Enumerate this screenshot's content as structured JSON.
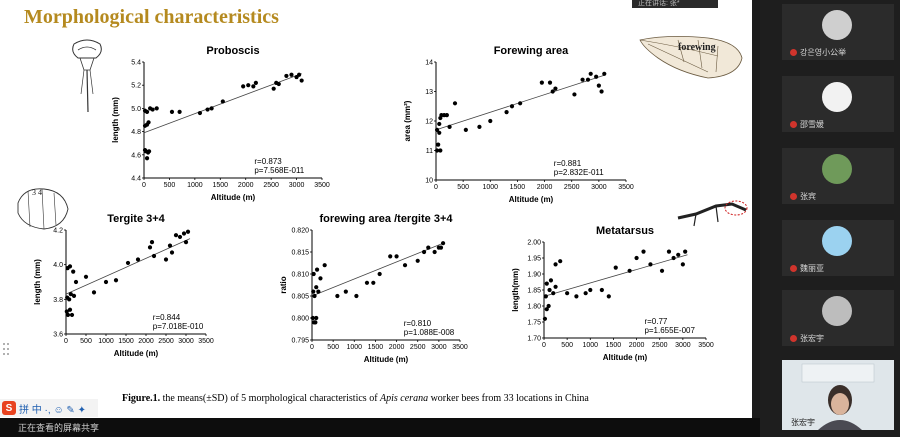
{
  "slide_title": "Morphological characteristics",
  "caption": {
    "prefix": "Figure.1.",
    "text": " the means(±SD) of 5 morphological characteristics of ",
    "species": "Apis cerana",
    "suffix": " worker bees from 33 locations in China"
  },
  "illustration_labels": {
    "forewing": "forewing",
    "tergite": "3 4"
  },
  "chart_data": [
    {
      "type": "scatter",
      "title": "Proboscis",
      "xlabel": "Altitude (m)",
      "ylabel": "length (mm)",
      "xlim": [
        0,
        3500
      ],
      "ylim": [
        4.4,
        5.4
      ],
      "xticks": [
        "0",
        "500",
        "1000",
        "1500",
        "2000",
        "2500",
        "3000",
        "3500"
      ],
      "yticks": [
        "4.4",
        "4.6",
        "4.8",
        "5.0",
        "5.2",
        "5.4"
      ],
      "r": "r=0.873",
      "p": "p=7.568E-011",
      "trend": [
        [
          0,
          4.79
        ],
        [
          3100,
          5.3
        ]
      ],
      "points": [
        [
          20,
          4.64
        ],
        [
          40,
          4.63
        ],
        [
          60,
          4.57
        ],
        [
          80,
          4.62
        ],
        [
          100,
          4.63
        ],
        [
          20,
          4.85
        ],
        [
          60,
          4.86
        ],
        [
          90,
          4.88
        ],
        [
          20,
          4.98
        ],
        [
          60,
          4.97
        ],
        [
          120,
          5.0
        ],
        [
          170,
          4.99
        ],
        [
          250,
          5.0
        ],
        [
          550,
          4.97
        ],
        [
          700,
          4.97
        ],
        [
          1100,
          4.96
        ],
        [
          1250,
          4.99
        ],
        [
          1330,
          5.0
        ],
        [
          1550,
          5.06
        ],
        [
          1950,
          5.19
        ],
        [
          2050,
          5.2
        ],
        [
          2150,
          5.19
        ],
        [
          2200,
          5.22
        ],
        [
          2550,
          5.17
        ],
        [
          2600,
          5.22
        ],
        [
          2650,
          5.21
        ],
        [
          2800,
          5.28
        ],
        [
          2900,
          5.29
        ],
        [
          3000,
          5.27
        ],
        [
          3050,
          5.29
        ],
        [
          3100,
          5.24
        ]
      ]
    },
    {
      "type": "scatter",
      "title": "Forewing area",
      "xlabel": "Altitude (m)",
      "ylabel": "area (mm²)",
      "xlim": [
        0,
        3500
      ],
      "ylim": [
        10,
        14
      ],
      "xticks": [
        "0",
        "500",
        "1000",
        "1500",
        "2000",
        "2500",
        "3000",
        "3500"
      ],
      "yticks": [
        "10",
        "11",
        "12",
        "13",
        "14"
      ],
      "r": "r=0.881",
      "p": "p=2.832E-011",
      "trend": [
        [
          0,
          11.7
        ],
        [
          3100,
          13.55
        ]
      ],
      "points": [
        [
          20,
          11.0
        ],
        [
          40,
          11.2
        ],
        [
          60,
          11.6
        ],
        [
          80,
          11.0
        ],
        [
          20,
          11.7
        ],
        [
          60,
          11.9
        ],
        [
          80,
          12.1
        ],
        [
          100,
          12.2
        ],
        [
          150,
          12.2
        ],
        [
          200,
          12.2
        ],
        [
          250,
          11.8
        ],
        [
          350,
          12.6
        ],
        [
          550,
          11.7
        ],
        [
          800,
          11.8
        ],
        [
          1000,
          12.0
        ],
        [
          1300,
          12.3
        ],
        [
          1400,
          12.5
        ],
        [
          1550,
          12.6
        ],
        [
          1950,
          13.3
        ],
        [
          2100,
          13.3
        ],
        [
          2150,
          13.0
        ],
        [
          2200,
          13.1
        ],
        [
          2550,
          12.9
        ],
        [
          2700,
          13.4
        ],
        [
          2800,
          13.4
        ],
        [
          2850,
          13.6
        ],
        [
          2950,
          13.5
        ],
        [
          3000,
          13.2
        ],
        [
          3050,
          13.0
        ],
        [
          3100,
          13.6
        ]
      ]
    },
    {
      "type": "scatter",
      "title": "Tergite 3+4",
      "xlabel": "Altitude (m)",
      "ylabel": "length (mm)",
      "xlim": [
        0,
        3500
      ],
      "ylim": [
        3.6,
        4.2
      ],
      "xticks": [
        "0",
        "500",
        "1000",
        "1500",
        "2000",
        "2500",
        "3000",
        "3500"
      ],
      "yticks": [
        "3.6",
        "3.8",
        "4.0",
        "4.2"
      ],
      "r": "r=0.844",
      "p": "p=7.018E-010",
      "trend": [
        [
          0,
          3.83
        ],
        [
          3100,
          4.15
        ]
      ],
      "points": [
        [
          20,
          3.73
        ],
        [
          50,
          3.71
        ],
        [
          100,
          3.74
        ],
        [
          150,
          3.71
        ],
        [
          30,
          3.81
        ],
        [
          80,
          3.8
        ],
        [
          120,
          3.83
        ],
        [
          200,
          3.82
        ],
        [
          250,
          3.9
        ],
        [
          40,
          3.98
        ],
        [
          100,
          3.99
        ],
        [
          180,
          3.96
        ],
        [
          500,
          3.93
        ],
        [
          700,
          3.84
        ],
        [
          1000,
          3.9
        ],
        [
          1250,
          3.91
        ],
        [
          1550,
          4.01
        ],
        [
          1800,
          4.03
        ],
        [
          2100,
          4.1
        ],
        [
          2150,
          4.13
        ],
        [
          2200,
          4.05
        ],
        [
          2500,
          4.03
        ],
        [
          2600,
          4.11
        ],
        [
          2650,
          4.07
        ],
        [
          2750,
          4.17
        ],
        [
          2850,
          4.16
        ],
        [
          2950,
          4.18
        ],
        [
          3000,
          4.13
        ],
        [
          3050,
          4.19
        ]
      ]
    },
    {
      "type": "scatter",
      "title": "forewing area /tergite 3+4",
      "xlabel": "Altitude (m)",
      "ylabel": "ratio",
      "xlim": [
        0,
        3500
      ],
      "ylim": [
        0.795,
        0.82
      ],
      "xticks": [
        "0",
        "500",
        "1000",
        "1500",
        "2000",
        "2500",
        "3000",
        "3500"
      ],
      "yticks": [
        "0.795",
        "0.800",
        "0.805",
        "0.810",
        "0.815",
        "0.820"
      ],
      "r": "r=0.810",
      "p": "p=1.088E-008",
      "trend": [
        [
          0,
          0.805
        ],
        [
          3100,
          0.817
        ]
      ],
      "points": [
        [
          20,
          0.8
        ],
        [
          50,
          0.799
        ],
        [
          80,
          0.799
        ],
        [
          100,
          0.8
        ],
        [
          30,
          0.806
        ],
        [
          60,
          0.805
        ],
        [
          100,
          0.807
        ],
        [
          150,
          0.806
        ],
        [
          40,
          0.81
        ],
        [
          120,
          0.811
        ],
        [
          200,
          0.809
        ],
        [
          300,
          0.812
        ],
        [
          600,
          0.805
        ],
        [
          800,
          0.806
        ],
        [
          1050,
          0.805
        ],
        [
          1300,
          0.808
        ],
        [
          1450,
          0.808
        ],
        [
          1600,
          0.81
        ],
        [
          1850,
          0.814
        ],
        [
          2000,
          0.814
        ],
        [
          2200,
          0.812
        ],
        [
          2500,
          0.813
        ],
        [
          2650,
          0.815
        ],
        [
          2750,
          0.816
        ],
        [
          2900,
          0.815
        ],
        [
          3000,
          0.816
        ],
        [
          3050,
          0.816
        ],
        [
          3100,
          0.817
        ]
      ]
    },
    {
      "type": "scatter",
      "title": "Metatarsus",
      "xlabel": "Altitude (m)",
      "ylabel": "length(mm)",
      "xlim": [
        0,
        3500
      ],
      "ylim": [
        1.7,
        2.0
      ],
      "xticks": [
        "0",
        "500",
        "1000",
        "1500",
        "2000",
        "2500",
        "3000",
        "3500"
      ],
      "yticks": [
        "1.70",
        "1.75",
        "1.80",
        "1.85",
        "1.90",
        "1.95",
        "2.00"
      ],
      "r": "r=0.77",
      "p": "p=1.655E-007",
      "trend": [
        [
          0,
          1.83
        ],
        [
          3100,
          1.96
        ]
      ],
      "points": [
        [
          20,
          1.76
        ],
        [
          60,
          1.79
        ],
        [
          100,
          1.8
        ],
        [
          40,
          1.83
        ],
        [
          120,
          1.85
        ],
        [
          200,
          1.84
        ],
        [
          250,
          1.86
        ],
        [
          60,
          1.87
        ],
        [
          150,
          1.88
        ],
        [
          250,
          1.93
        ],
        [
          350,
          1.94
        ],
        [
          500,
          1.84
        ],
        [
          700,
          1.83
        ],
        [
          900,
          1.84
        ],
        [
          1000,
          1.85
        ],
        [
          1250,
          1.85
        ],
        [
          1400,
          1.83
        ],
        [
          1550,
          1.92
        ],
        [
          1850,
          1.91
        ],
        [
          2000,
          1.95
        ],
        [
          2150,
          1.97
        ],
        [
          2300,
          1.93
        ],
        [
          2550,
          1.91
        ],
        [
          2700,
          1.97
        ],
        [
          2800,
          1.95
        ],
        [
          2900,
          1.96
        ],
        [
          3000,
          1.93
        ],
        [
          3050,
          1.97
        ]
      ]
    }
  ],
  "ime_toolbar": {
    "label": "拼 中 ·, ☺ ✎ ✦"
  },
  "bottom_bar": {
    "text": "正在查看的屏幕共享"
  },
  "top_indicator": {
    "text": "正在讲话: 张*"
  },
  "participants": [
    {
      "name": "강은영小公举",
      "avatar_color": "#cfcfcf"
    },
    {
      "name": "邵雪媛",
      "avatar_color": "#f2f2f2"
    },
    {
      "name": "张宾",
      "avatar_color": "#6f9a5a"
    },
    {
      "name": "魏丽亚",
      "avatar_color": "#9bd2f0"
    },
    {
      "name": "张宏宇",
      "avatar_color": "#bdbdbd"
    }
  ],
  "video_tile": {
    "name": "张宏宇"
  }
}
